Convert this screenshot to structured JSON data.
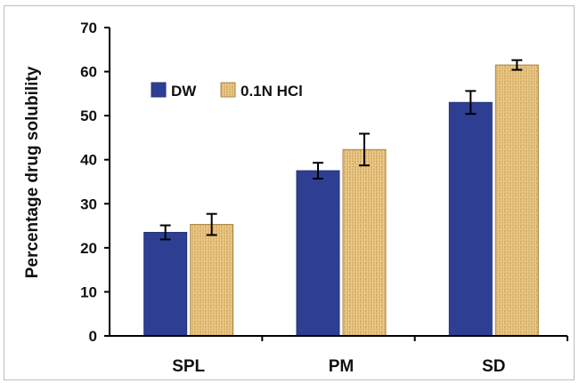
{
  "chart_data": {
    "type": "bar",
    "categories": [
      "SPL",
      "PM",
      "SD"
    ],
    "series": [
      {
        "name": "DW",
        "values": [
          23.5,
          37.5,
          53
        ],
        "errors": [
          1.6,
          1.8,
          2.6
        ],
        "color": "#2e3f93"
      },
      {
        "name": "0.1N HCl",
        "values": [
          25.3,
          42.3,
          61.5
        ],
        "errors": [
          2.4,
          3.6,
          1.1
        ],
        "color": "#e3be78"
      }
    ],
    "title": "",
    "xlabel": "",
    "ylabel": "Percentage drug solubility",
    "ylim": [
      0,
      70
    ],
    "yticks": [
      0,
      10,
      20,
      30,
      40,
      50,
      60,
      70
    ],
    "grid": false,
    "legend_position": "upper-left"
  }
}
